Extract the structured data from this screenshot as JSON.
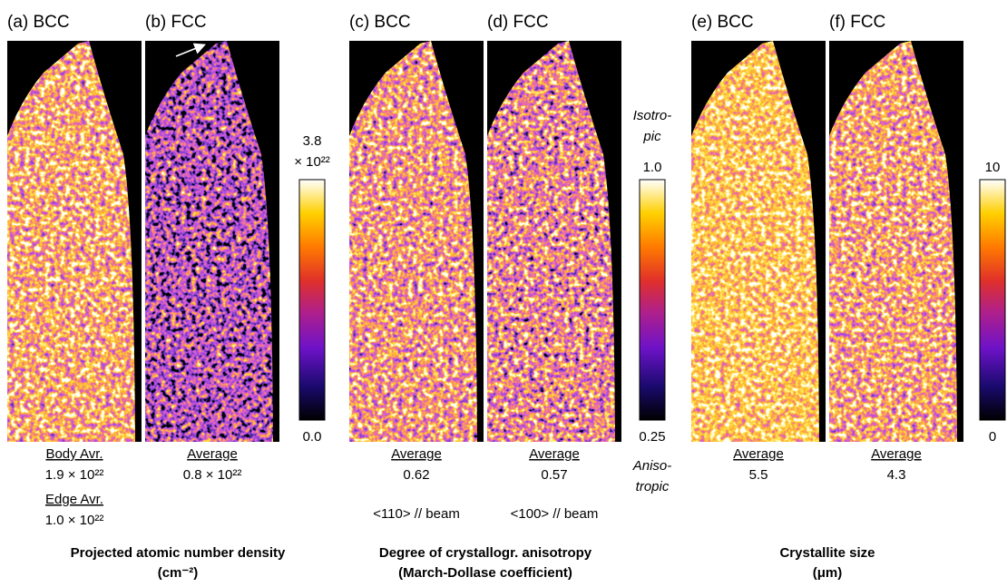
{
  "panels": [
    {
      "label": "(a) BCC",
      "stats": [
        {
          "heading": "Body Avr.",
          "value": "1.9 × 10²²"
        },
        {
          "heading": "Edge Avr.",
          "value": "1.0 × 10²²"
        }
      ]
    },
    {
      "label": "(b) FCC",
      "stats": [
        {
          "heading": "Average",
          "value": "0.8 × 10²²"
        }
      ]
    },
    {
      "label": "(c) BCC",
      "stats": [
        {
          "heading": "Average",
          "value": "0.62"
        }
      ],
      "note": "<110> // beam"
    },
    {
      "label": "(d) FCC",
      "stats": [
        {
          "heading": "Average",
          "value": "0.57"
        }
      ],
      "note": "<100> // beam"
    },
    {
      "label": "(e) BCC",
      "stats": [
        {
          "heading": "Average",
          "value": "5.5"
        }
      ]
    },
    {
      "label": "(f) FCC",
      "stats": [
        {
          "heading": "Average",
          "value": "4.3"
        }
      ]
    }
  ],
  "colorbars": [
    {
      "max": "3.8",
      "max_unit": "× 10²²",
      "min": "0.0"
    },
    {
      "top_note": [
        "Isotro-",
        "pic"
      ],
      "max": "1.0",
      "min": "0.25",
      "bottom_note": [
        "Aniso-",
        "tropic"
      ]
    },
    {
      "max": "10",
      "min": "0"
    }
  ],
  "groups": [
    {
      "title": "Projected atomic number density",
      "unit": "(cm⁻²)"
    },
    {
      "title": "Degree of crystallogr. anisotropy",
      "unit": "(March-Dollase coefficient)"
    },
    {
      "title": "Crystallite size",
      "unit": "(μm)"
    }
  ]
}
